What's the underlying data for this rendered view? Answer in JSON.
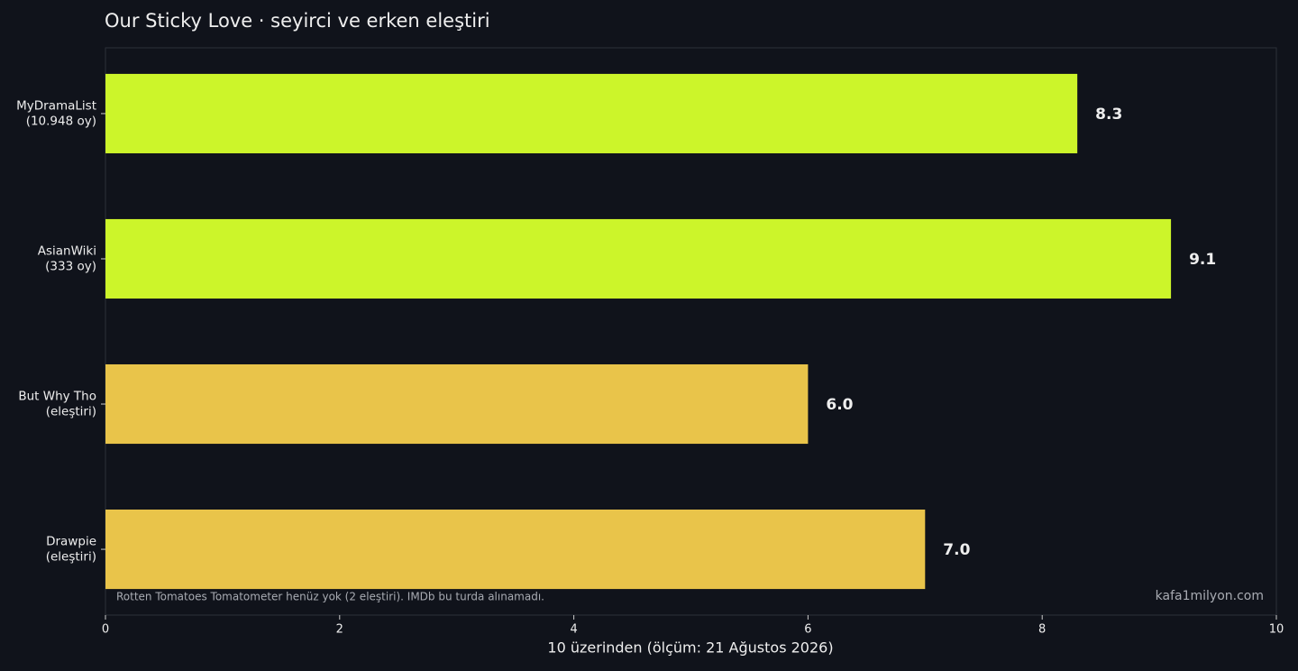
{
  "chart_data": {
    "type": "bar",
    "orientation": "horizontal",
    "title": "Our Sticky Love · seyirci ve erken eleştiri",
    "categories": [
      [
        "MyDramaList",
        "(10.948 oy)"
      ],
      [
        "AsianWiki",
        "(333 oy)"
      ],
      [
        "But Why Tho",
        "(eleştiri)"
      ],
      [
        "Drawpie",
        "(eleştiri)"
      ]
    ],
    "values": [
      8.3,
      9.1,
      6,
      7
    ],
    "value_labels": [
      "8.3",
      "9.1",
      "6.0",
      "7.0"
    ],
    "colors": [
      "#ccf52a",
      "#ccf52a",
      "#e9c44a",
      "#e9c44a"
    ],
    "xlabel": "10 üzerinden (ölçüm: 21 Ağustos 2026)",
    "xlim": [
      0,
      10
    ],
    "xticks": [
      0,
      2,
      4,
      6,
      8,
      10
    ],
    "grid": false,
    "annotation": "Rotten Tomatoes Tomatometer henüz yok (2 eleştiri). IMDb bu turda alınamadı.",
    "watermark": "kafa1milyon.com"
  }
}
